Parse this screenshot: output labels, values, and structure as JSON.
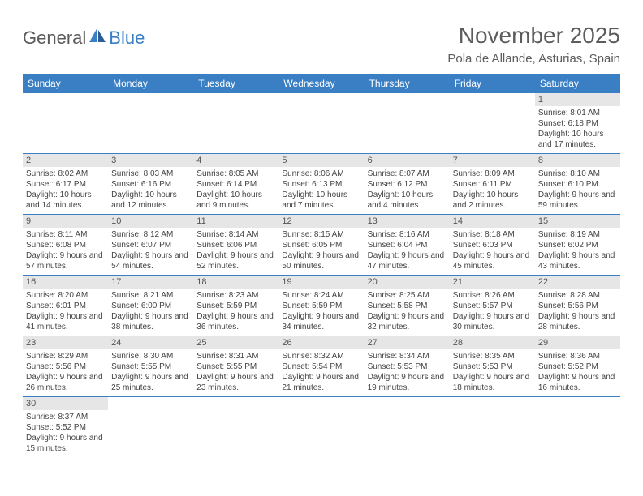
{
  "logo": {
    "text1": "General",
    "text2": "Blue"
  },
  "title": "November 2025",
  "location": "Pola de Allande, Asturias, Spain",
  "colors": {
    "header_bg": "#3a7fc4",
    "header_text": "#ffffff",
    "daynum_bg": "#e6e6e6",
    "text": "#444444",
    "rule": "#3a7fc4"
  },
  "day_headers": [
    "Sunday",
    "Monday",
    "Tuesday",
    "Wednesday",
    "Thursday",
    "Friday",
    "Saturday"
  ],
  "weeks": [
    [
      null,
      null,
      null,
      null,
      null,
      null,
      {
        "n": "1",
        "sr": "8:01 AM",
        "ss": "6:18 PM",
        "dl": "10 hours and 17 minutes."
      }
    ],
    [
      {
        "n": "2",
        "sr": "8:02 AM",
        "ss": "6:17 PM",
        "dl": "10 hours and 14 minutes."
      },
      {
        "n": "3",
        "sr": "8:03 AM",
        "ss": "6:16 PM",
        "dl": "10 hours and 12 minutes."
      },
      {
        "n": "4",
        "sr": "8:05 AM",
        "ss": "6:14 PM",
        "dl": "10 hours and 9 minutes."
      },
      {
        "n": "5",
        "sr": "8:06 AM",
        "ss": "6:13 PM",
        "dl": "10 hours and 7 minutes."
      },
      {
        "n": "6",
        "sr": "8:07 AM",
        "ss": "6:12 PM",
        "dl": "10 hours and 4 minutes."
      },
      {
        "n": "7",
        "sr": "8:09 AM",
        "ss": "6:11 PM",
        "dl": "10 hours and 2 minutes."
      },
      {
        "n": "8",
        "sr": "8:10 AM",
        "ss": "6:10 PM",
        "dl": "9 hours and 59 minutes."
      }
    ],
    [
      {
        "n": "9",
        "sr": "8:11 AM",
        "ss": "6:08 PM",
        "dl": "9 hours and 57 minutes."
      },
      {
        "n": "10",
        "sr": "8:12 AM",
        "ss": "6:07 PM",
        "dl": "9 hours and 54 minutes."
      },
      {
        "n": "11",
        "sr": "8:14 AM",
        "ss": "6:06 PM",
        "dl": "9 hours and 52 minutes."
      },
      {
        "n": "12",
        "sr": "8:15 AM",
        "ss": "6:05 PM",
        "dl": "9 hours and 50 minutes."
      },
      {
        "n": "13",
        "sr": "8:16 AM",
        "ss": "6:04 PM",
        "dl": "9 hours and 47 minutes."
      },
      {
        "n": "14",
        "sr": "8:18 AM",
        "ss": "6:03 PM",
        "dl": "9 hours and 45 minutes."
      },
      {
        "n": "15",
        "sr": "8:19 AM",
        "ss": "6:02 PM",
        "dl": "9 hours and 43 minutes."
      }
    ],
    [
      {
        "n": "16",
        "sr": "8:20 AM",
        "ss": "6:01 PM",
        "dl": "9 hours and 41 minutes."
      },
      {
        "n": "17",
        "sr": "8:21 AM",
        "ss": "6:00 PM",
        "dl": "9 hours and 38 minutes."
      },
      {
        "n": "18",
        "sr": "8:23 AM",
        "ss": "5:59 PM",
        "dl": "9 hours and 36 minutes."
      },
      {
        "n": "19",
        "sr": "8:24 AM",
        "ss": "5:59 PM",
        "dl": "9 hours and 34 minutes."
      },
      {
        "n": "20",
        "sr": "8:25 AM",
        "ss": "5:58 PM",
        "dl": "9 hours and 32 minutes."
      },
      {
        "n": "21",
        "sr": "8:26 AM",
        "ss": "5:57 PM",
        "dl": "9 hours and 30 minutes."
      },
      {
        "n": "22",
        "sr": "8:28 AM",
        "ss": "5:56 PM",
        "dl": "9 hours and 28 minutes."
      }
    ],
    [
      {
        "n": "23",
        "sr": "8:29 AM",
        "ss": "5:56 PM",
        "dl": "9 hours and 26 minutes."
      },
      {
        "n": "24",
        "sr": "8:30 AM",
        "ss": "5:55 PM",
        "dl": "9 hours and 25 minutes."
      },
      {
        "n": "25",
        "sr": "8:31 AM",
        "ss": "5:55 PM",
        "dl": "9 hours and 23 minutes."
      },
      {
        "n": "26",
        "sr": "8:32 AM",
        "ss": "5:54 PM",
        "dl": "9 hours and 21 minutes."
      },
      {
        "n": "27",
        "sr": "8:34 AM",
        "ss": "5:53 PM",
        "dl": "9 hours and 19 minutes."
      },
      {
        "n": "28",
        "sr": "8:35 AM",
        "ss": "5:53 PM",
        "dl": "9 hours and 18 minutes."
      },
      {
        "n": "29",
        "sr": "8:36 AM",
        "ss": "5:52 PM",
        "dl": "9 hours and 16 minutes."
      }
    ],
    [
      {
        "n": "30",
        "sr": "8:37 AM",
        "ss": "5:52 PM",
        "dl": "9 hours and 15 minutes."
      },
      null,
      null,
      null,
      null,
      null,
      null
    ]
  ],
  "labels": {
    "sunrise": "Sunrise:",
    "sunset": "Sunset:",
    "daylight": "Daylight:"
  }
}
